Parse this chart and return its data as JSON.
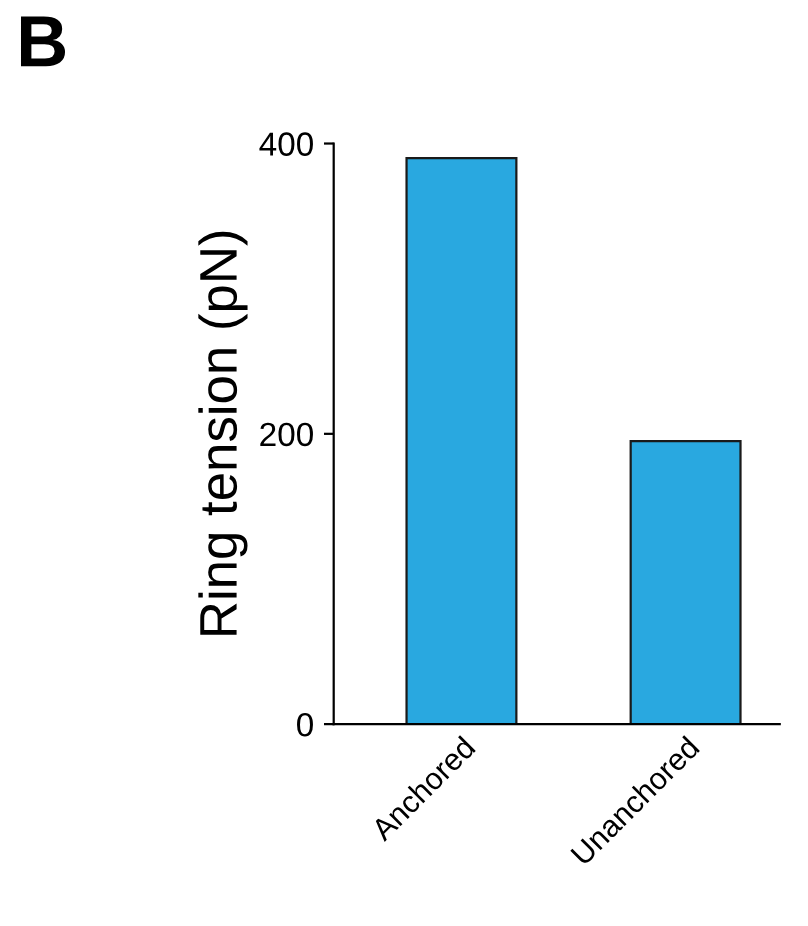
{
  "chart_data": {
    "type": "bar",
    "ylabel": "Ring tension (pN)",
    "categories": [
      "Anchored",
      "Unanchored"
    ],
    "values": [
      390,
      195
    ],
    "color": "#29a8e0",
    "ylim": [
      0,
      400
    ],
    "yticks": [
      0,
      200,
      400
    ],
    "grid": false,
    "legend": false,
    "annotations": [
      "B"
    ]
  }
}
